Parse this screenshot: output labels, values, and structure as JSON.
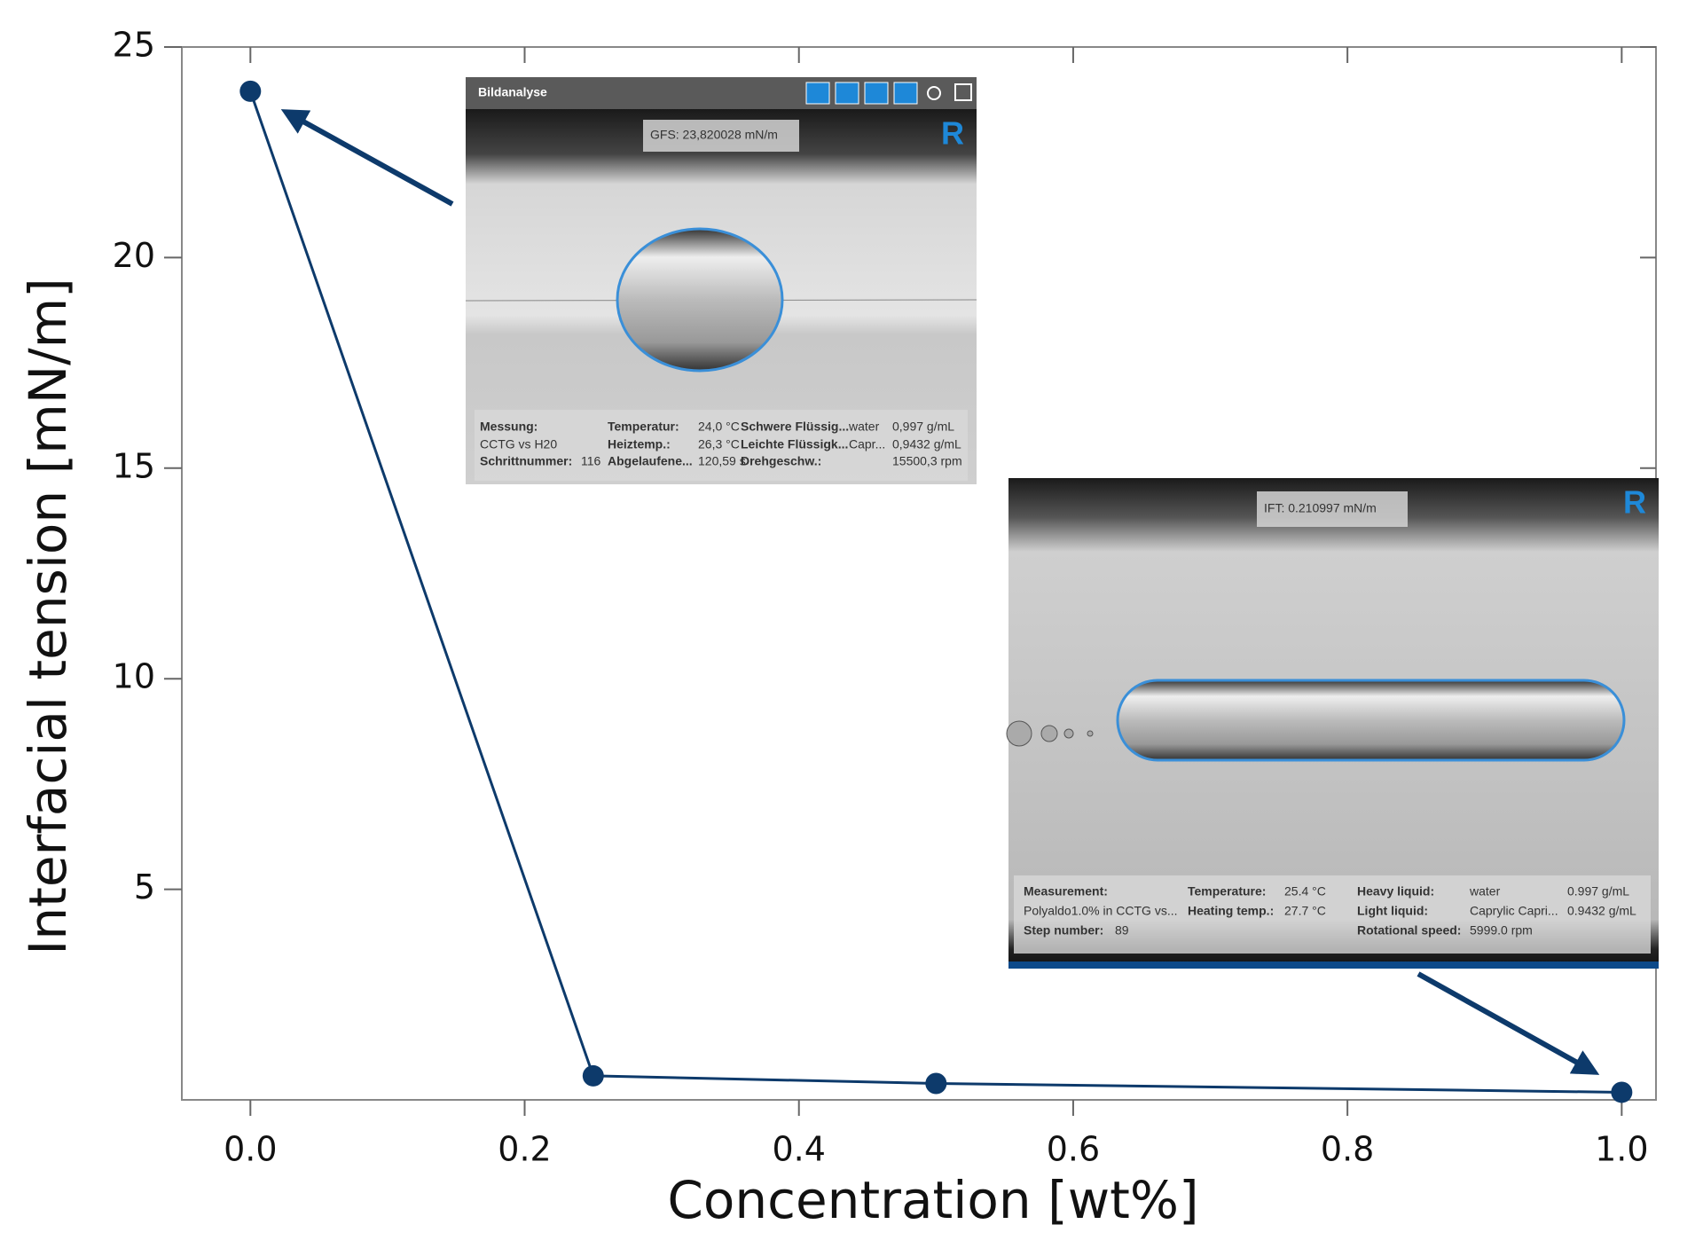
{
  "chart_data": {
    "type": "line",
    "x_label": "Concentration [wt%]",
    "y_label": "Interfacial tension [mN/m]",
    "x": [
      0,
      0.25,
      0.5,
      1.0
    ],
    "series": [
      {
        "name": "Interfacial tension",
        "color": "#0d3a6b",
        "values": [
          23.95,
          0.57,
          0.39,
          0.18
        ]
      }
    ],
    "xlim": [
      -0.05,
      1.025
    ],
    "ylim": [
      0,
      25
    ],
    "xticks": [
      {
        "value": 0,
        "label": "0.0"
      },
      0.2,
      0.4,
      0.6,
      0.8,
      {
        "value": 1,
        "label": "1.0"
      }
    ],
    "yticks": [
      5,
      10,
      15,
      20,
      25
    ],
    "insets": [
      {
        "title": "Bildanalyse",
        "logo": "R",
        "result": "GFS: 23,820028 mN/m",
        "rows": [
          [
            "Messung:",
            null,
            "Temperatur:",
            "24,0 °C",
            "Schwere Flüssig...",
            "water",
            "0,997 g/mL"
          ],
          [
            "CCTG vs H20",
            null,
            "Heiztemp.:",
            "26,3 °C",
            "Leichte Flüssigk...",
            "Capr...",
            "0,9432 g/mL"
          ],
          [
            "Schrittnummer:",
            "116",
            "Abgelaufene...",
            "120,59 s",
            "Drehgeschw.:",
            null,
            "15500,3 rpm"
          ]
        ]
      },
      {
        "logo": "R",
        "result": "IFT: 0.210997 mN/m",
        "rows": [
          [
            "Measurement:",
            null,
            "Temperature:",
            "25.4 °C",
            "Heavy liquid:",
            "water",
            "0.997 g/mL"
          ],
          [
            "Polyaldo1.0% in CCTG vs...",
            null,
            "Heating temp.:",
            "27.7 °C",
            "Light liquid:",
            "Caprylic Capri...",
            "0.9432 g/mL"
          ],
          [
            "Step number:",
            "89",
            null,
            null,
            "Rotational speed:",
            "5999.0 rpm",
            null
          ]
        ]
      }
    ]
  }
}
